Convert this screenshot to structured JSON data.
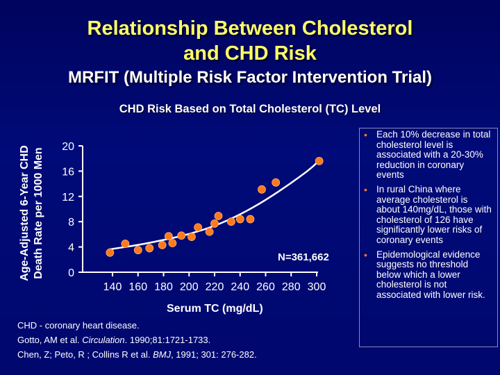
{
  "slide": {
    "title_line1": "Relationship Between Cholesterol",
    "title_line2": "and CHD Risk",
    "subtitle": "MRFIT (Multiple Risk Factor Intervention Trial)",
    "title_color": "#ffff66",
    "background_color": "#000a78"
  },
  "chart_data": {
    "type": "scatter",
    "title": "CHD Risk Based on Total Cholesterol (TC) Level",
    "xlabel": "Serum TC (mg/dL)",
    "ylabel": "Age-Adjusted 6-Year CHD Death Rate per 1000 Men",
    "ylabel_line1": "Age-Adjusted 6-Year CHD",
    "ylabel_line2": "Death Rate per 1000 Men",
    "xlim": [
      127,
      305
    ],
    "ylim": [
      0,
      20
    ],
    "x_ticks": [
      140,
      160,
      180,
      200,
      220,
      240,
      260,
      280,
      300
    ],
    "y_ticks": [
      0,
      4,
      8,
      12,
      16,
      20
    ],
    "grid": false,
    "annotation": "N=361,662",
    "marker_color": "#ff7a1a",
    "fit_color": "#ffffff",
    "points": [
      {
        "x": 138,
        "y": 3.1
      },
      {
        "x": 150,
        "y": 4.5
      },
      {
        "x": 160,
        "y": 3.5
      },
      {
        "x": 169,
        "y": 3.8
      },
      {
        "x": 179,
        "y": 4.3
      },
      {
        "x": 184,
        "y": 5.7
      },
      {
        "x": 187,
        "y": 4.6
      },
      {
        "x": 194,
        "y": 5.8
      },
      {
        "x": 202,
        "y": 5.6
      },
      {
        "x": 207,
        "y": 7.1
      },
      {
        "x": 216,
        "y": 6.4
      },
      {
        "x": 220,
        "y": 7.7
      },
      {
        "x": 223,
        "y": 8.9
      },
      {
        "x": 233,
        "y": 8.0
      },
      {
        "x": 240,
        "y": 8.4
      },
      {
        "x": 248,
        "y": 8.4
      },
      {
        "x": 257,
        "y": 13.1
      },
      {
        "x": 268,
        "y": 14.2
      },
      {
        "x": 302,
        "y": 17.6
      }
    ],
    "fit_curve": [
      {
        "x": 137,
        "y": 3.6
      },
      {
        "x": 160,
        "y": 4.3
      },
      {
        "x": 180,
        "y": 5.1
      },
      {
        "x": 200,
        "y": 6.0
      },
      {
        "x": 220,
        "y": 7.3
      },
      {
        "x": 240,
        "y": 9.1
      },
      {
        "x": 260,
        "y": 11.4
      },
      {
        "x": 280,
        "y": 14.1
      },
      {
        "x": 298,
        "y": 16.8
      },
      {
        "x": 303,
        "y": 18.1
      }
    ]
  },
  "footnotes": {
    "line1": "CHD - coronary heart disease.",
    "line2_pre": "Gotto, AM et al. ",
    "line2_journal": "Circulation",
    "line2_post": ". 1990;81:1721-1733.",
    "line3_pre": "Chen, Z; Peto, R ; Collins R et al. ",
    "line3_journal": "BMJ",
    "line3_post": ", 1991; 301: 276-282."
  },
  "side_panel": {
    "bullets": [
      "Each 10% decrease in total cholesterol level is associated with a 20-30% reduction in coronary events",
      "In rural China where average cholesterol is about 140mg/dL, those with cholesterol of 126 have significantly lower risks of coronary events",
      "Epidemological evidence suggests no threshold below which a lower cholesterol is not associated with lower risk."
    ],
    "bullet_glyph": "•"
  }
}
